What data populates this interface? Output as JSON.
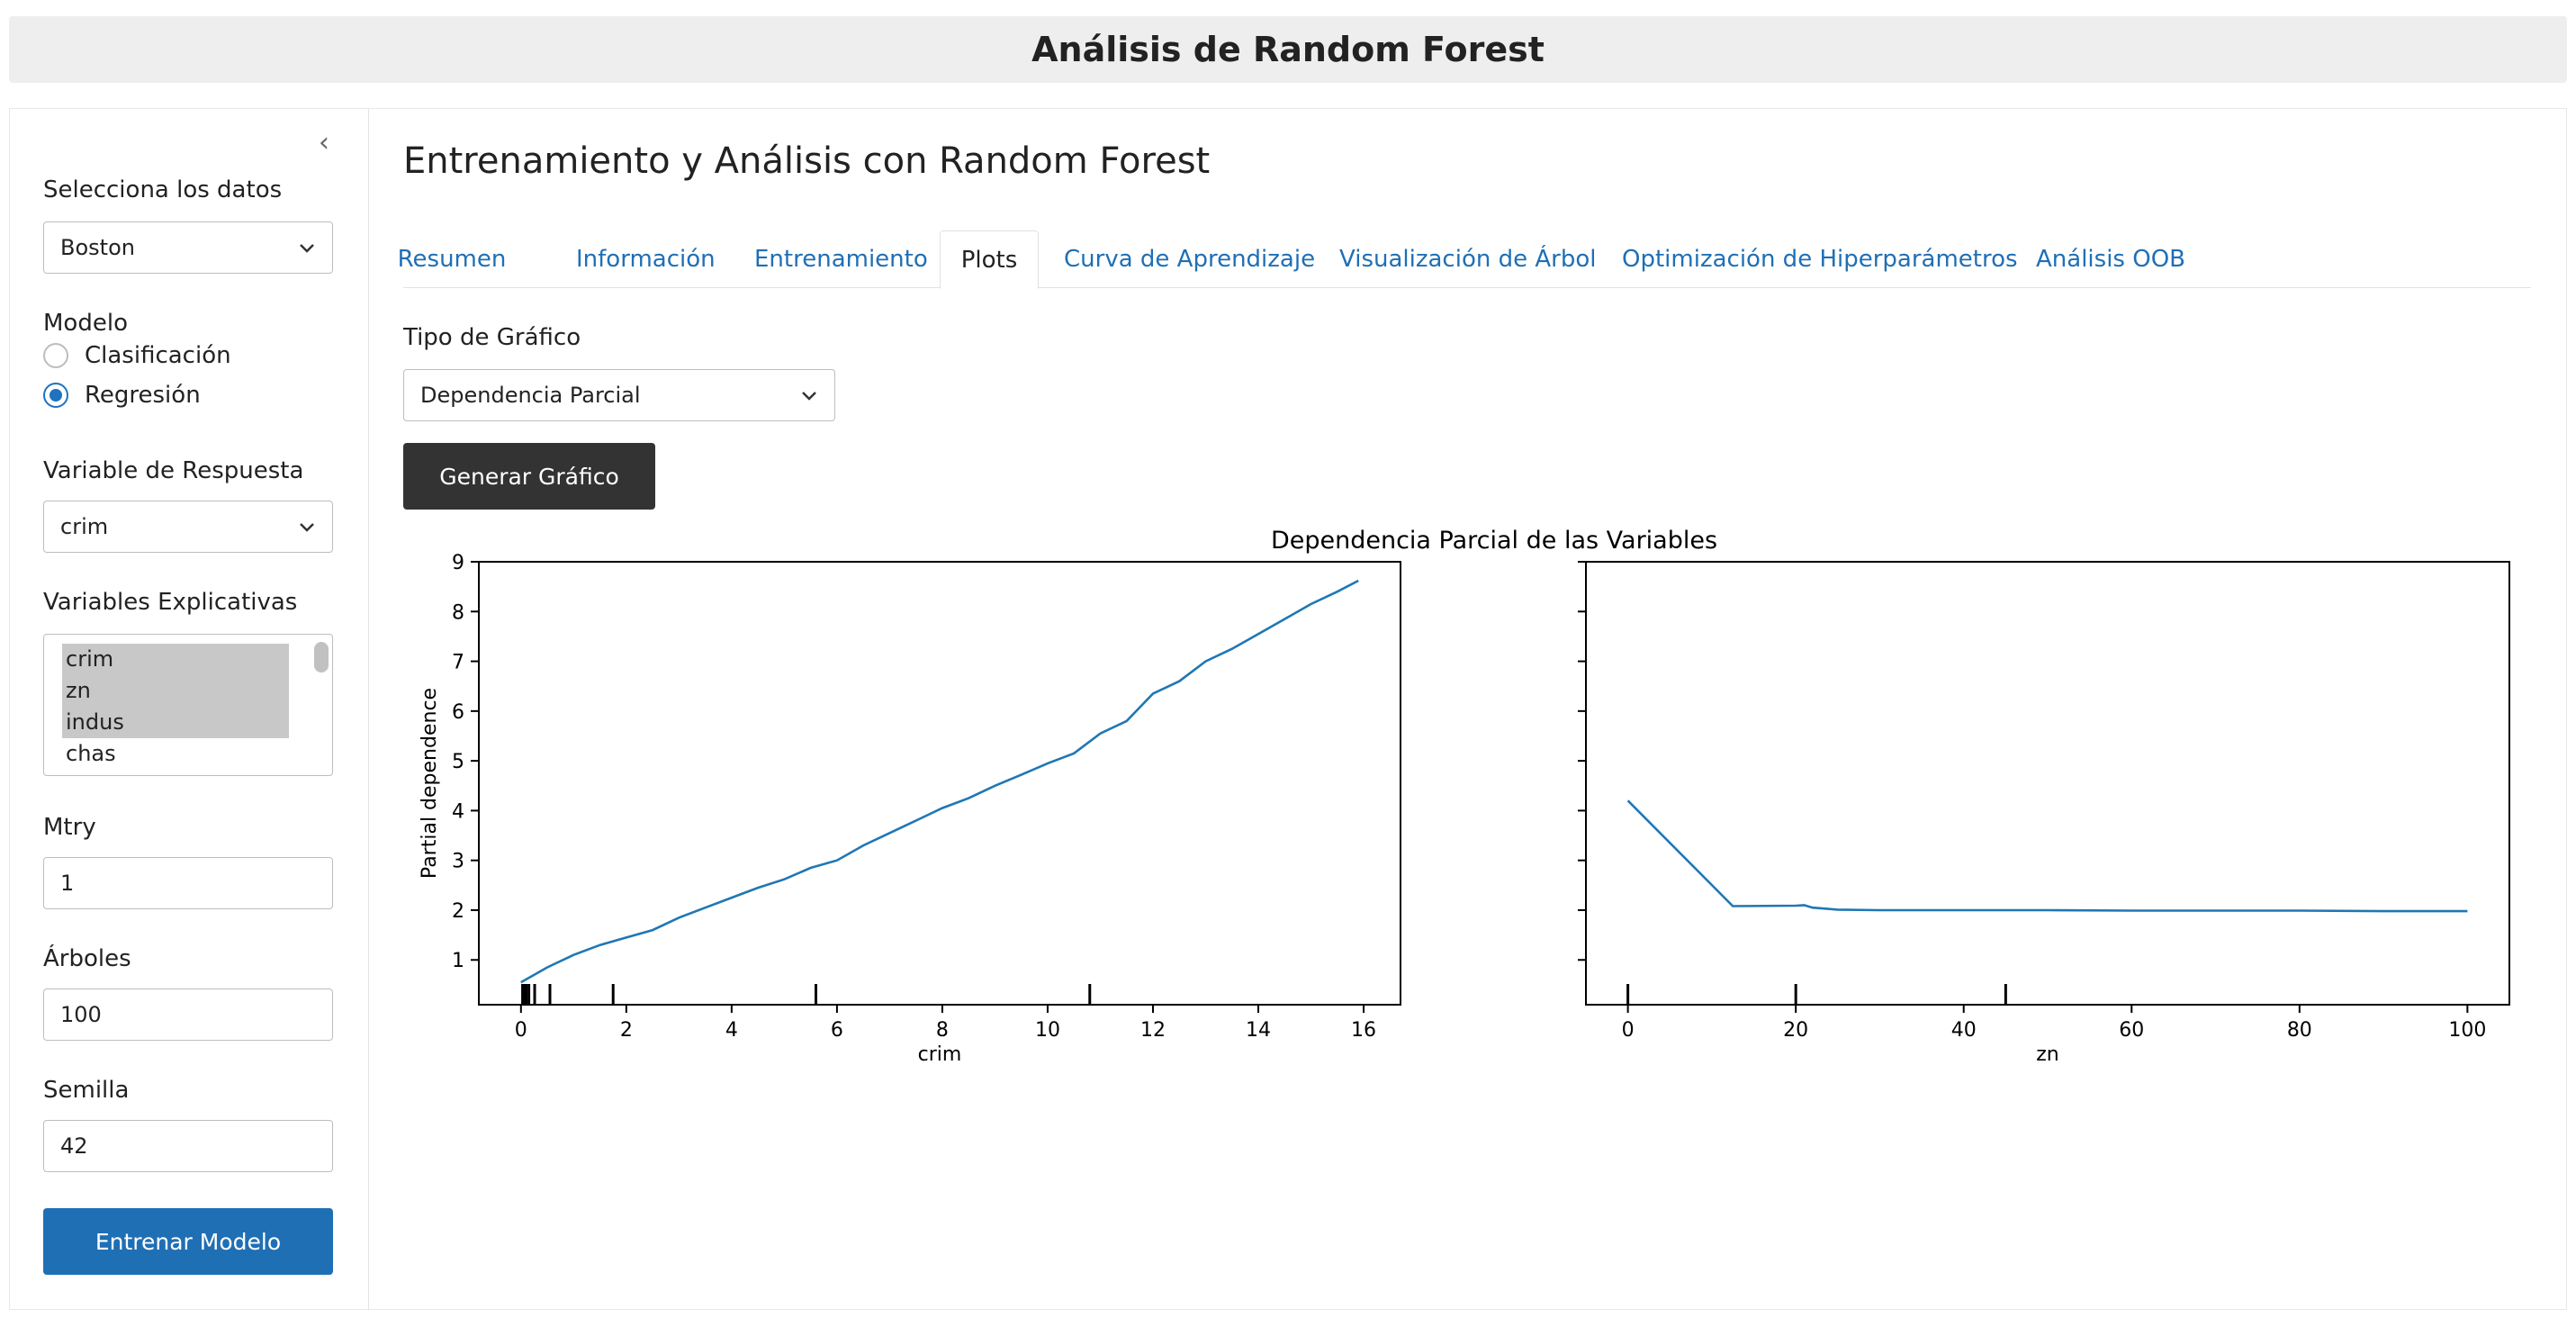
{
  "app": {
    "title": "Análisis de Random Forest"
  },
  "sidebar": {
    "data_label": "Selecciona los datos",
    "data_value": "Boston",
    "model_label": "Modelo",
    "model_options": [
      "Clasificación",
      "Regresión"
    ],
    "model_selected": "Regresión",
    "response_label": "Variable de Respuesta",
    "response_value": "crim",
    "explanatory_label": "Variables Explicativas",
    "explanatory_options": [
      {
        "label": "crim",
        "selected": true
      },
      {
        "label": "zn",
        "selected": true
      },
      {
        "label": "indus",
        "selected": true
      },
      {
        "label": "chas",
        "selected": false
      }
    ],
    "mtry_label": "Mtry",
    "mtry_value": "1",
    "trees_label": "Árboles",
    "trees_value": "100",
    "seed_label": "Semilla",
    "seed_value": "42",
    "train_button": "Entrenar Modelo"
  },
  "main": {
    "title": "Entrenamiento y Análisis con Random Forest",
    "tabs": [
      {
        "label": "Resumen",
        "active": false
      },
      {
        "label": "Información",
        "active": false
      },
      {
        "label": "Entrenamiento",
        "active": false
      },
      {
        "label": "Plots",
        "active": true
      },
      {
        "label": "Curva de Aprendizaje",
        "active": false
      },
      {
        "label": "Visualización de Árbol",
        "active": false
      },
      {
        "label": "Optimización de Hiperparámetros",
        "active": false
      },
      {
        "label": "Análisis OOB",
        "active": false
      }
    ],
    "plot_type_label": "Tipo de Gráfico",
    "plot_type_value": "Dependencia Parcial",
    "generate_button": "Generar Gráfico"
  },
  "colors": {
    "accent": "#1f6fb5",
    "dark_button": "#333333",
    "line": "#1f77b4",
    "header_bg": "#eeeeee"
  },
  "chart_data": {
    "type": "line",
    "title": "Dependencia Parcial de las Variables",
    "ylabel": "Partial dependence",
    "ylim": [
      0.1,
      9.0
    ],
    "yticks": [
      1,
      2,
      3,
      4,
      5,
      6,
      7,
      8,
      9
    ],
    "shared_y": true,
    "panels": [
      {
        "xlabel": "crim",
        "xlim": [
          -0.8,
          16.7
        ],
        "xticks": [
          0,
          2,
          4,
          6,
          8,
          10,
          12,
          14,
          16
        ],
        "rug_deciles": [
          0.03,
          0.06,
          0.09,
          0.1,
          0.15,
          0.26,
          0.55,
          1.75,
          5.6,
          10.8
        ],
        "x": [
          0.0,
          0.5,
          1.0,
          1.5,
          2.0,
          2.5,
          3.0,
          3.5,
          4.0,
          4.5,
          5.0,
          5.5,
          6.0,
          6.5,
          7.0,
          7.5,
          8.0,
          8.5,
          9.0,
          9.5,
          10.0,
          10.5,
          11.0,
          11.5,
          12.0,
          12.5,
          13.0,
          13.5,
          14.0,
          14.5,
          15.0,
          15.5,
          15.9
        ],
        "y": [
          0.55,
          0.85,
          1.1,
          1.3,
          1.45,
          1.6,
          1.85,
          2.05,
          2.25,
          2.45,
          2.62,
          2.85,
          3.0,
          3.3,
          3.55,
          3.8,
          4.05,
          4.25,
          4.5,
          4.72,
          4.95,
          5.15,
          5.55,
          5.8,
          6.35,
          6.6,
          7.0,
          7.25,
          7.55,
          7.85,
          8.15,
          8.4,
          8.62
        ]
      },
      {
        "xlabel": "zn",
        "xlim": [
          -5,
          105
        ],
        "xticks": [
          0,
          20,
          40,
          60,
          80,
          100
        ],
        "rug_deciles": [
          0,
          20,
          45
        ],
        "x": [
          0,
          12.5,
          20,
          21,
          22,
          25,
          30,
          40,
          50,
          60,
          70,
          80,
          90,
          100
        ],
        "y": [
          4.2,
          2.08,
          2.09,
          2.1,
          2.05,
          2.01,
          2.0,
          2.0,
          2.0,
          1.99,
          1.99,
          1.99,
          1.98,
          1.98
        ]
      }
    ]
  }
}
